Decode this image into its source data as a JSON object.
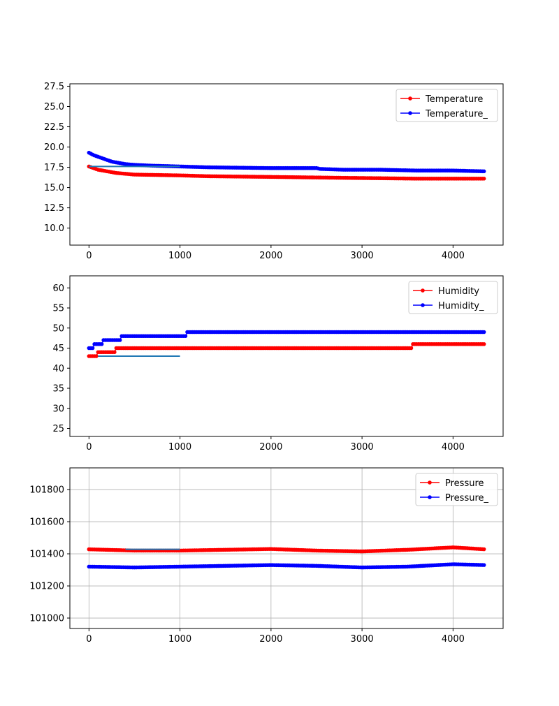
{
  "chart_data": [
    {
      "type": "line",
      "title": "",
      "xlabel": "",
      "ylabel": "",
      "xlim": [
        -210,
        4550
      ],
      "ylim": [
        7.9,
        27.8
      ],
      "xticks": [
        0,
        1000,
        2000,
        3000,
        4000
      ],
      "xtick_labels": [
        "0",
        "1000",
        "2000",
        "3000",
        "4000"
      ],
      "yticks": [
        10.0,
        12.5,
        15.0,
        17.5,
        20.0,
        22.5,
        25.0,
        27.5
      ],
      "ytick_labels": [
        "10.0",
        "12.5",
        "15.0",
        "17.5",
        "20.0",
        "22.5",
        "25.0",
        "27.5"
      ],
      "grid": false,
      "legend": "top-right",
      "series": [
        {
          "name": "Temperature",
          "color": "#ff0000",
          "marker": "dot",
          "x": [
            0,
            50,
            100,
            150,
            200,
            250,
            300,
            400,
            500,
            1000,
            1300,
            2100,
            2800,
            3600,
            4350
          ],
          "y": [
            17.6,
            17.4,
            17.2,
            17.1,
            17.0,
            16.9,
            16.8,
            16.7,
            16.6,
            16.5,
            16.4,
            16.3,
            16.2,
            16.1,
            16.1
          ]
        },
        {
          "name": "Temperature_",
          "color": "#0000ff",
          "marker": "dot",
          "x": [
            0,
            50,
            100,
            150,
            200,
            250,
            300,
            350,
            400,
            500,
            700,
            1000,
            1300,
            2000,
            2500,
            2540,
            2800,
            3200,
            3600,
            4000,
            4350
          ],
          "y": [
            19.3,
            19.0,
            18.8,
            18.6,
            18.4,
            18.2,
            18.1,
            18.0,
            17.9,
            17.8,
            17.7,
            17.6,
            17.5,
            17.4,
            17.4,
            17.3,
            17.2,
            17.2,
            17.1,
            17.1,
            17.0
          ]
        },
        {
          "name": "",
          "color": "#1f77b4",
          "marker": "none",
          "x": [
            0,
            1000
          ],
          "y": [
            17.6,
            17.6
          ]
        }
      ]
    },
    {
      "type": "line",
      "title": "",
      "xlabel": "",
      "ylabel": "",
      "xlim": [
        -210,
        4550
      ],
      "ylim": [
        23,
        63
      ],
      "xticks": [
        0,
        1000,
        2000,
        3000,
        4000
      ],
      "xtick_labels": [
        "0",
        "1000",
        "2000",
        "3000",
        "4000"
      ],
      "yticks": [
        25,
        30,
        35,
        40,
        45,
        50,
        55,
        60
      ],
      "ytick_labels": [
        "25",
        "30",
        "35",
        "40",
        "45",
        "50",
        "55",
        "60"
      ],
      "grid": false,
      "legend": "top-right",
      "series": [
        {
          "name": "Humidity",
          "color": "#ff0000",
          "marker": "dot",
          "x": [
            0,
            99,
            100,
            299,
            300,
            3550,
            3551,
            4350
          ],
          "y": [
            43,
            43,
            44,
            44,
            45,
            45,
            46,
            46
          ]
        },
        {
          "name": "Humidity_",
          "color": "#0000ff",
          "marker": "dot",
          "x": [
            0,
            59,
            60,
            159,
            160,
            349,
            350,
            1079,
            1080,
            4350
          ],
          "y": [
            45,
            45,
            46,
            46,
            47,
            47,
            48,
            48,
            49,
            49
          ]
        },
        {
          "name": "",
          "color": "#1f77b4",
          "marker": "none",
          "x": [
            100,
            1000
          ],
          "y": [
            43,
            43
          ]
        }
      ]
    },
    {
      "type": "line",
      "title": "",
      "xlabel": "",
      "ylabel": "",
      "xlim": [
        -210,
        4550
      ],
      "ylim": [
        100935,
        101935
      ],
      "xticks": [
        0,
        1000,
        2000,
        3000,
        4000
      ],
      "xtick_labels": [
        "0",
        "1000",
        "2000",
        "3000",
        "4000"
      ],
      "yticks": [
        101000,
        101200,
        101400,
        101600,
        101800
      ],
      "ytick_labels": [
        "101000",
        "101200",
        "101400",
        "101600",
        "101800"
      ],
      "grid": true,
      "legend": "top-right",
      "series": [
        {
          "name": "Pressure",
          "color": "#ff0000",
          "marker": "dot",
          "x": [
            0,
            500,
            1000,
            1500,
            2000,
            2500,
            3000,
            3500,
            4000,
            4350
          ],
          "y": [
            101428,
            101420,
            101420,
            101425,
            101430,
            101420,
            101415,
            101425,
            101440,
            101428
          ]
        },
        {
          "name": "Pressure_",
          "color": "#0000ff",
          "marker": "dot",
          "x": [
            0,
            500,
            1000,
            1500,
            2000,
            2500,
            3000,
            3500,
            4000,
            4350
          ],
          "y": [
            101320,
            101315,
            101320,
            101325,
            101330,
            101325,
            101315,
            101320,
            101335,
            101330
          ]
        },
        {
          "name": "",
          "color": "#1f77b4",
          "marker": "none",
          "x": [
            400,
            1000
          ],
          "y": [
            101428,
            101428
          ]
        }
      ]
    }
  ]
}
